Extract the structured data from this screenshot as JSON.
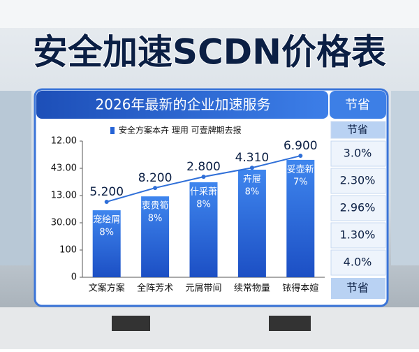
{
  "title": "安全加速SCDN价格表",
  "chart_data": {
    "type": "bar",
    "subtitle": "2026年最新的企业加速服务",
    "categories": [
      "文案方案",
      "全阵芳术",
      "元屑带间",
      "续常物量",
      "铱得本媗"
    ],
    "series": [
      {
        "name": "安全方案本卉 理用 可壹牌期去报",
        "type": "bar",
        "color": "#2563d6",
        "values": [
          246,
          297,
          349,
          395,
          431
        ]
      },
      {
        "type": "line",
        "color": "#2f6fd8",
        "values": [
          277,
          328,
          369,
          402,
          446
        ]
      }
    ],
    "top_labels": [
      "5.200",
      "8.200",
      "2.800",
      "4.310",
      "6.900"
    ],
    "inner_labels": [
      [
        "宠绘屑",
        "8%"
      ],
      [
        "衷贵筍",
        "8%"
      ],
      [
        "什采萧",
        "8%"
      ],
      [
        "卉屉",
        "8%"
      ],
      [
        "妥壶新",
        "7%"
      ]
    ],
    "ylim": [
      0,
      500
    ],
    "yticks": [
      0,
      100,
      {
        "value": 200,
        "label": "30.00"
      },
      {
        "value": 300,
        "label": "13.00"
      },
      {
        "value": 400,
        "label": "43.00"
      },
      {
        "value": 500,
        "label": "12.00"
      }
    ]
  },
  "side_table": {
    "header": "节省",
    "rows": [
      "节省",
      "3.0%",
      "2.30%",
      "2.96%",
      "1.30%",
      "4.0%"
    ],
    "footer": "节省"
  }
}
